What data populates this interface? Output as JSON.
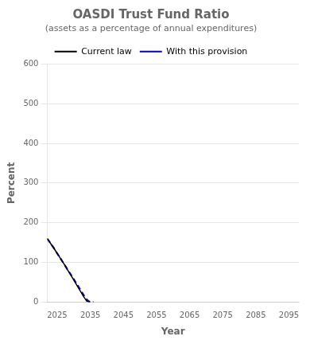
{
  "chart_data": {
    "type": "line",
    "title": "OASDI Trust Fund Ratio",
    "subtitle": "(assets as a percentage of annual expenditures)",
    "xlabel": "Year",
    "ylabel": "Percent",
    "x": [
      2022,
      2023,
      2024,
      2025,
      2026,
      2027,
      2028,
      2029,
      2030,
      2031,
      2032,
      2033,
      2034,
      2035,
      2036
    ],
    "series": [
      {
        "name": "Current law",
        "color": "#000000",
        "line_style": "solid",
        "values": [
          160,
          148,
          136,
          123,
          110,
          97,
          83,
          70,
          56,
          42,
          28,
          14,
          2,
          0,
          null
        ]
      },
      {
        "name": "With this provision",
        "color": "#0000cc",
        "line_style": "dashed",
        "values": [
          160,
          148,
          136,
          123,
          110,
          97,
          84,
          71,
          58,
          45,
          31,
          18,
          6,
          0,
          0
        ]
      }
    ],
    "xlim": [
      2022,
      2098
    ],
    "xticks": [
      2025,
      2035,
      2045,
      2055,
      2065,
      2075,
      2085,
      2095
    ],
    "ylim": [
      0,
      600
    ],
    "yticks": [
      0,
      100,
      200,
      300,
      400,
      500,
      600
    ],
    "grid": "y",
    "legend": "top"
  }
}
